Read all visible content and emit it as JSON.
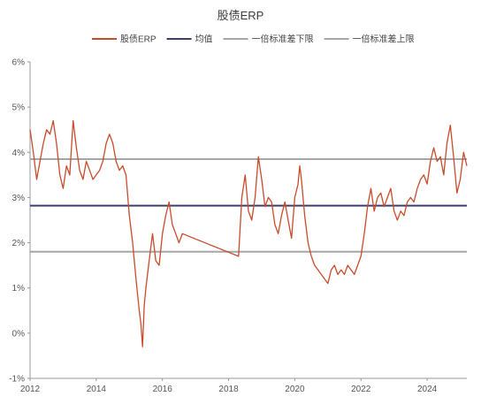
{
  "chart_data": {
    "type": "line",
    "title": "股债ERP",
    "xlabel": "",
    "ylabel": "",
    "x_ticks": [
      "2012",
      "2014",
      "2016",
      "2018",
      "2020",
      "2022",
      "2024"
    ],
    "y_ticks": [
      "-1%",
      "0%",
      "1%",
      "2%",
      "3%",
      "4%",
      "5%",
      "6%"
    ],
    "xlim": [
      2012.0,
      2025.2
    ],
    "ylim": [
      -1,
      6
    ],
    "grid": false,
    "legend_position": "top",
    "series": [
      {
        "name": "股债ERP",
        "color": "#c84b2c",
        "x": [
          2012.0,
          2012.1,
          2012.2,
          2012.3,
          2012.4,
          2012.5,
          2012.6,
          2012.7,
          2012.8,
          2012.9,
          2013.0,
          2013.1,
          2013.2,
          2013.3,
          2013.4,
          2013.5,
          2013.6,
          2013.7,
          2013.8,
          2013.9,
          2014.0,
          2014.1,
          2014.2,
          2014.3,
          2014.4,
          2014.5,
          2014.6,
          2014.7,
          2014.8,
          2014.9,
          2015.0,
          2015.1,
          2015.2,
          2015.3,
          2015.35,
          2015.4,
          2015.45,
          2015.5,
          2015.6,
          2015.7,
          2015.8,
          2015.9,
          2016.0,
          2016.1,
          2016.2,
          2016.3,
          2016.4,
          2016.5,
          2016.55,
          2016.6,
          2018.3,
          2018.4,
          2018.5,
          2018.6,
          2018.7,
          2018.8,
          2018.9,
          2019.0,
          2019.1,
          2019.2,
          2019.3,
          2019.4,
          2019.5,
          2019.6,
          2019.7,
          2019.8,
          2019.9,
          2020.0,
          2020.1,
          2020.15,
          2020.2,
          2020.3,
          2020.4,
          2020.5,
          2020.6,
          2020.7,
          2020.8,
          2020.9,
          2021.0,
          2021.1,
          2021.2,
          2021.3,
          2021.4,
          2021.5,
          2021.6,
          2021.7,
          2021.8,
          2021.9,
          2022.0,
          2022.1,
          2022.2,
          2022.3,
          2022.4,
          2022.5,
          2022.6,
          2022.7,
          2022.8,
          2022.9,
          2023.0,
          2023.1,
          2023.2,
          2023.3,
          2023.4,
          2023.5,
          2023.6,
          2023.7,
          2023.8,
          2023.9,
          2024.0,
          2024.1,
          2024.2,
          2024.3,
          2024.4,
          2024.5,
          2024.6,
          2024.7,
          2024.8,
          2024.9,
          2025.0,
          2025.1,
          2025.2
        ],
        "values": [
          4.5,
          4.0,
          3.4,
          3.8,
          4.2,
          4.5,
          4.4,
          4.7,
          4.2,
          3.5,
          3.2,
          3.7,
          3.5,
          4.7,
          4.1,
          3.6,
          3.4,
          3.8,
          3.6,
          3.4,
          3.5,
          3.6,
          3.8,
          4.2,
          4.4,
          4.2,
          3.8,
          3.6,
          3.7,
          3.5,
          2.6,
          2.0,
          1.2,
          0.5,
          0.2,
          -0.3,
          0.6,
          1.0,
          1.6,
          2.2,
          1.6,
          1.5,
          2.2,
          2.6,
          2.9,
          2.4,
          2.2,
          2.0,
          2.1,
          2.2,
          1.7,
          3.0,
          3.5,
          2.7,
          2.5,
          3.0,
          3.9,
          3.4,
          2.8,
          3.0,
          2.9,
          2.4,
          2.2,
          2.6,
          2.9,
          2.5,
          2.1,
          3.0,
          3.3,
          3.7,
          3.4,
          2.6,
          2.0,
          1.7,
          1.5,
          1.4,
          1.3,
          1.2,
          1.1,
          1.4,
          1.5,
          1.3,
          1.4,
          1.3,
          1.5,
          1.4,
          1.3,
          1.5,
          1.7,
          2.2,
          2.8,
          3.2,
          2.7,
          3.0,
          3.1,
          2.8,
          3.0,
          3.2,
          2.7,
          2.5,
          2.7,
          2.6,
          2.9,
          3.0,
          2.9,
          3.2,
          3.4,
          3.5,
          3.3,
          3.8,
          4.1,
          3.8,
          3.9,
          3.5,
          4.2,
          4.6,
          3.9,
          3.1,
          3.4,
          4.0,
          3.7
        ]
      },
      {
        "name": "均值",
        "color": "#3c3f6e",
        "x": [
          2012.0,
          2025.2
        ],
        "values": [
          2.82,
          2.82
        ]
      },
      {
        "name": "一倍标准差下限",
        "color": "#a6a6a6",
        "x": [
          2012.0,
          2025.2
        ],
        "values": [
          1.8,
          1.8
        ]
      },
      {
        "name": "一倍标准差上限",
        "color": "#a6a6a6",
        "x": [
          2012.0,
          2025.2
        ],
        "values": [
          3.85,
          3.85
        ]
      }
    ]
  }
}
